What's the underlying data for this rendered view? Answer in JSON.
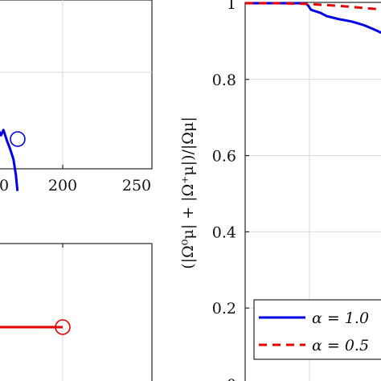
{
  "chart_data": [
    {
      "type": "line",
      "panel": "top-left (cropped)",
      "x_ticks": [
        "0",
        "200",
        "250"
      ],
      "series": [
        {
          "name": "",
          "color": "#0000e6",
          "x": [
            0,
            5,
            10,
            15,
            22,
            28,
            35,
            40,
            43
          ],
          "y": [
            0.52,
            0.51,
            0.49,
            0.51,
            0.47,
            0.44,
            0.4,
            0.34,
            0.28
          ]
        }
      ],
      "end_marker": {
        "shape": "circle",
        "color": "#0000e6"
      },
      "grid": true
    },
    {
      "type": "line",
      "panel": "bottom-left (cropped)",
      "series": [
        {
          "name": "",
          "color": "#e60000",
          "y": "constant"
        }
      ],
      "end_marker": {
        "shape": "circle",
        "color": "#e60000"
      },
      "grid": true
    },
    {
      "type": "line",
      "panel": "right",
      "ylabel": "(|Ω⁰μ| + |Ω⁺μ|)/|Ωμ|",
      "ylim": [
        0,
        1
      ],
      "y_ticks": [
        "0",
        "0.2",
        "0.4",
        "0.6",
        "0.8",
        "1"
      ],
      "grid": true,
      "legend_position": "bottom-right",
      "series": [
        {
          "name": "α = 1.0",
          "color": "#0000e6",
          "style": "solid",
          "x": [
            0,
            20,
            40,
            60,
            80,
            95,
            100,
            102,
            105,
            110,
            120,
            130,
            140,
            150,
            160,
            170,
            180,
            190,
            200,
            210,
            220,
            230,
            240,
            250,
            260,
            270,
            280,
            290,
            300
          ],
          "y": [
            1.0,
            1.0,
            1.0,
            1.0,
            1.0,
            1.0,
            0.995,
            0.99,
            0.983,
            0.98,
            0.975,
            0.966,
            0.962,
            0.958,
            0.955,
            0.952,
            0.947,
            0.942,
            0.935,
            0.928,
            0.92,
            0.91,
            0.898,
            0.883,
            0.868,
            0.852,
            0.838,
            0.83,
            0.826
          ]
        },
        {
          "name": "α = 0.5",
          "color": "#e60000",
          "style": "dashed",
          "x": [
            0,
            50,
            100,
            150,
            200,
            250,
            300
          ],
          "y": [
            1.0,
            1.0,
            0.998,
            0.993,
            0.986,
            0.979,
            0.972
          ]
        }
      ]
    }
  ],
  "legend": {
    "alpha_1_label": "α = 1.0",
    "alpha_05_label": "α = 0.5"
  },
  "axis_text": {
    "ylabel_right": "(|Ω⁰μ| + |Ω⁺μ|)/|Ωμ|"
  }
}
